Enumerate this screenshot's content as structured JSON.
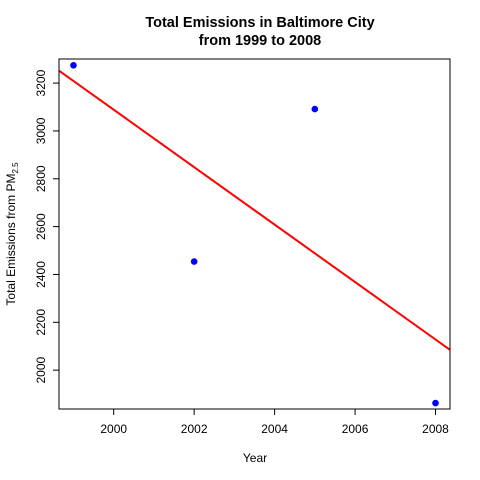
{
  "chart_data": {
    "type": "scatter",
    "title": "Total Emissions in Baltimore City",
    "subtitle": "from 1999 to 2008",
    "xlabel": "Year",
    "ylabel": {
      "main": "Total Emissions from PM",
      "subscript": "2.5"
    },
    "xlim": [
      1998.64,
      2008.36
    ],
    "ylim": [
      1837.6,
      3300.7
    ],
    "x_ticks": [
      2000,
      2002,
      2004,
      2006,
      2008
    ],
    "x_tick_labels": [
      "2000",
      "2002",
      "2004",
      "2006",
      "2008"
    ],
    "y_ticks": [
      2000,
      2200,
      2400,
      2600,
      2800,
      3000,
      3200
    ],
    "y_tick_labels": [
      "2000",
      "2200",
      "2400",
      "2600",
      "2800",
      "3000",
      "3200"
    ],
    "grid": false,
    "series": [
      {
        "type": "scatter",
        "x": [
          1999,
          2002,
          2005,
          2008
        ],
        "y": [
          3274.2,
          2453.9,
          3091.4,
          1862.3
        ],
        "color": "#0000ff"
      },
      {
        "type": "line",
        "x": [
          1998.64,
          2008.36
        ],
        "y": [
          3252,
          2085
        ],
        "color": "#ff0000"
      }
    ]
  }
}
